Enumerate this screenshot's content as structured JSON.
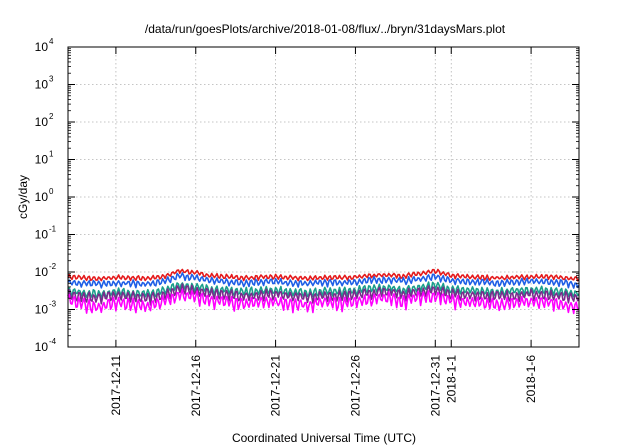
{
  "chart_data": {
    "type": "line",
    "title": "/data/run/goesPlots/archive/2018-01-08/flux/../bryn/31daysMars.plot",
    "xlabel": "Coordinated Universal Time (UTC)",
    "ylabel": "cGy/day",
    "y_scale": "log",
    "ylim": [
      0.0001,
      10000
    ],
    "xlim": [
      "2017-12-08",
      "2018-01-09"
    ],
    "grid": true,
    "legend": "none",
    "y_ticks": [
      {
        "value": 0.0001,
        "base": "10",
        "exp": "-4"
      },
      {
        "value": 0.001,
        "base": "10",
        "exp": "-3"
      },
      {
        "value": 0.01,
        "base": "10",
        "exp": "-2"
      },
      {
        "value": 0.1,
        "base": "10",
        "exp": "-1"
      },
      {
        "value": 1,
        "base": "10",
        "exp": "0"
      },
      {
        "value": 10,
        "base": "10",
        "exp": "1"
      },
      {
        "value": 100,
        "base": "10",
        "exp": "2"
      },
      {
        "value": 1000,
        "base": "10",
        "exp": "3"
      },
      {
        "value": 10000,
        "base": "10",
        "exp": "4"
      }
    ],
    "x_ticks": [
      {
        "date": "2017-12-11",
        "label": "2017-12-11"
      },
      {
        "date": "2017-12-16",
        "label": "2017-12-16"
      },
      {
        "date": "2017-12-21",
        "label": "2017-12-21"
      },
      {
        "date": "2017-12-26",
        "label": "2017-12-26"
      },
      {
        "date": "2017-12-31",
        "label": "2017-12-31"
      },
      {
        "date": "2018-01-01",
        "label": "2018-1-1"
      },
      {
        "date": "2018-01-06",
        "label": "2018-1-6"
      }
    ],
    "x": [
      "2017-12-08",
      "2017-12-09",
      "2017-12-10",
      "2017-12-11",
      "2017-12-12",
      "2017-12-13",
      "2017-12-14",
      "2017-12-15",
      "2017-12-16",
      "2017-12-17",
      "2017-12-18",
      "2017-12-19",
      "2017-12-20",
      "2017-12-21",
      "2017-12-22",
      "2017-12-23",
      "2017-12-24",
      "2017-12-25",
      "2017-12-26",
      "2017-12-27",
      "2017-12-28",
      "2017-12-29",
      "2017-12-30",
      "2017-12-31",
      "2018-01-01",
      "2018-01-02",
      "2018-01-03",
      "2018-01-04",
      "2018-01-05",
      "2018-01-06",
      "2018-01-07",
      "2018-01-08",
      "2018-01-09"
    ],
    "series": [
      {
        "color": "#e41a1c",
        "values": [
          0.0075,
          0.007,
          0.0065,
          0.0072,
          0.007,
          0.0068,
          0.0075,
          0.011,
          0.0095,
          0.008,
          0.0075,
          0.007,
          0.0072,
          0.0075,
          0.007,
          0.0068,
          0.0072,
          0.007,
          0.0075,
          0.008,
          0.0085,
          0.0078,
          0.009,
          0.0105,
          0.008,
          0.0075,
          0.0072,
          0.007,
          0.0072,
          0.0075,
          0.0075,
          0.007,
          0.0065
        ]
      },
      {
        "color": "#1f5fe6",
        "values": [
          0.0055,
          0.005,
          0.0048,
          0.0052,
          0.005,
          0.0048,
          0.0055,
          0.008,
          0.007,
          0.006,
          0.0055,
          0.0052,
          0.0055,
          0.0056,
          0.005,
          0.005,
          0.0053,
          0.0052,
          0.0055,
          0.006,
          0.0064,
          0.0058,
          0.0066,
          0.0075,
          0.006,
          0.0056,
          0.0054,
          0.0052,
          0.0054,
          0.0056,
          0.0055,
          0.0052,
          0.0045
        ]
      },
      {
        "color": "#1a9e8a",
        "values": [
          0.0032,
          0.0028,
          0.0026,
          0.003,
          0.0028,
          0.0026,
          0.0032,
          0.0046,
          0.004,
          0.0035,
          0.0032,
          0.003,
          0.0032,
          0.0033,
          0.0029,
          0.0028,
          0.0031,
          0.003,
          0.0032,
          0.0036,
          0.0038,
          0.0033,
          0.0039,
          0.0044,
          0.0034,
          0.0032,
          0.0031,
          0.003,
          0.0031,
          0.0033,
          0.0032,
          0.003,
          0.0026
        ]
      },
      {
        "color": "#7a2a8c",
        "values": [
          0.0025,
          0.0022,
          0.0021,
          0.0024,
          0.0022,
          0.002,
          0.0025,
          0.0036,
          0.0032,
          0.0027,
          0.0025,
          0.0023,
          0.0025,
          0.0026,
          0.0023,
          0.0022,
          0.0024,
          0.0023,
          0.0025,
          0.0028,
          0.003,
          0.0026,
          0.0031,
          0.0035,
          0.0027,
          0.0025,
          0.0024,
          0.0023,
          0.0024,
          0.0026,
          0.0025,
          0.0023,
          0.002
        ]
      },
      {
        "color": "#ff00ff",
        "values": [
          0.0018,
          0.0014,
          0.0012,
          0.0016,
          0.0014,
          0.0012,
          0.0017,
          0.0025,
          0.0022,
          0.0018,
          0.0016,
          0.0014,
          0.0016,
          0.0017,
          0.0014,
          0.0013,
          0.0016,
          0.0015,
          0.0017,
          0.0019,
          0.0021,
          0.0017,
          0.0022,
          0.0024,
          0.0018,
          0.0016,
          0.0015,
          0.0014,
          0.0015,
          0.0017,
          0.0016,
          0.0014,
          0.0011
        ]
      }
    ]
  }
}
